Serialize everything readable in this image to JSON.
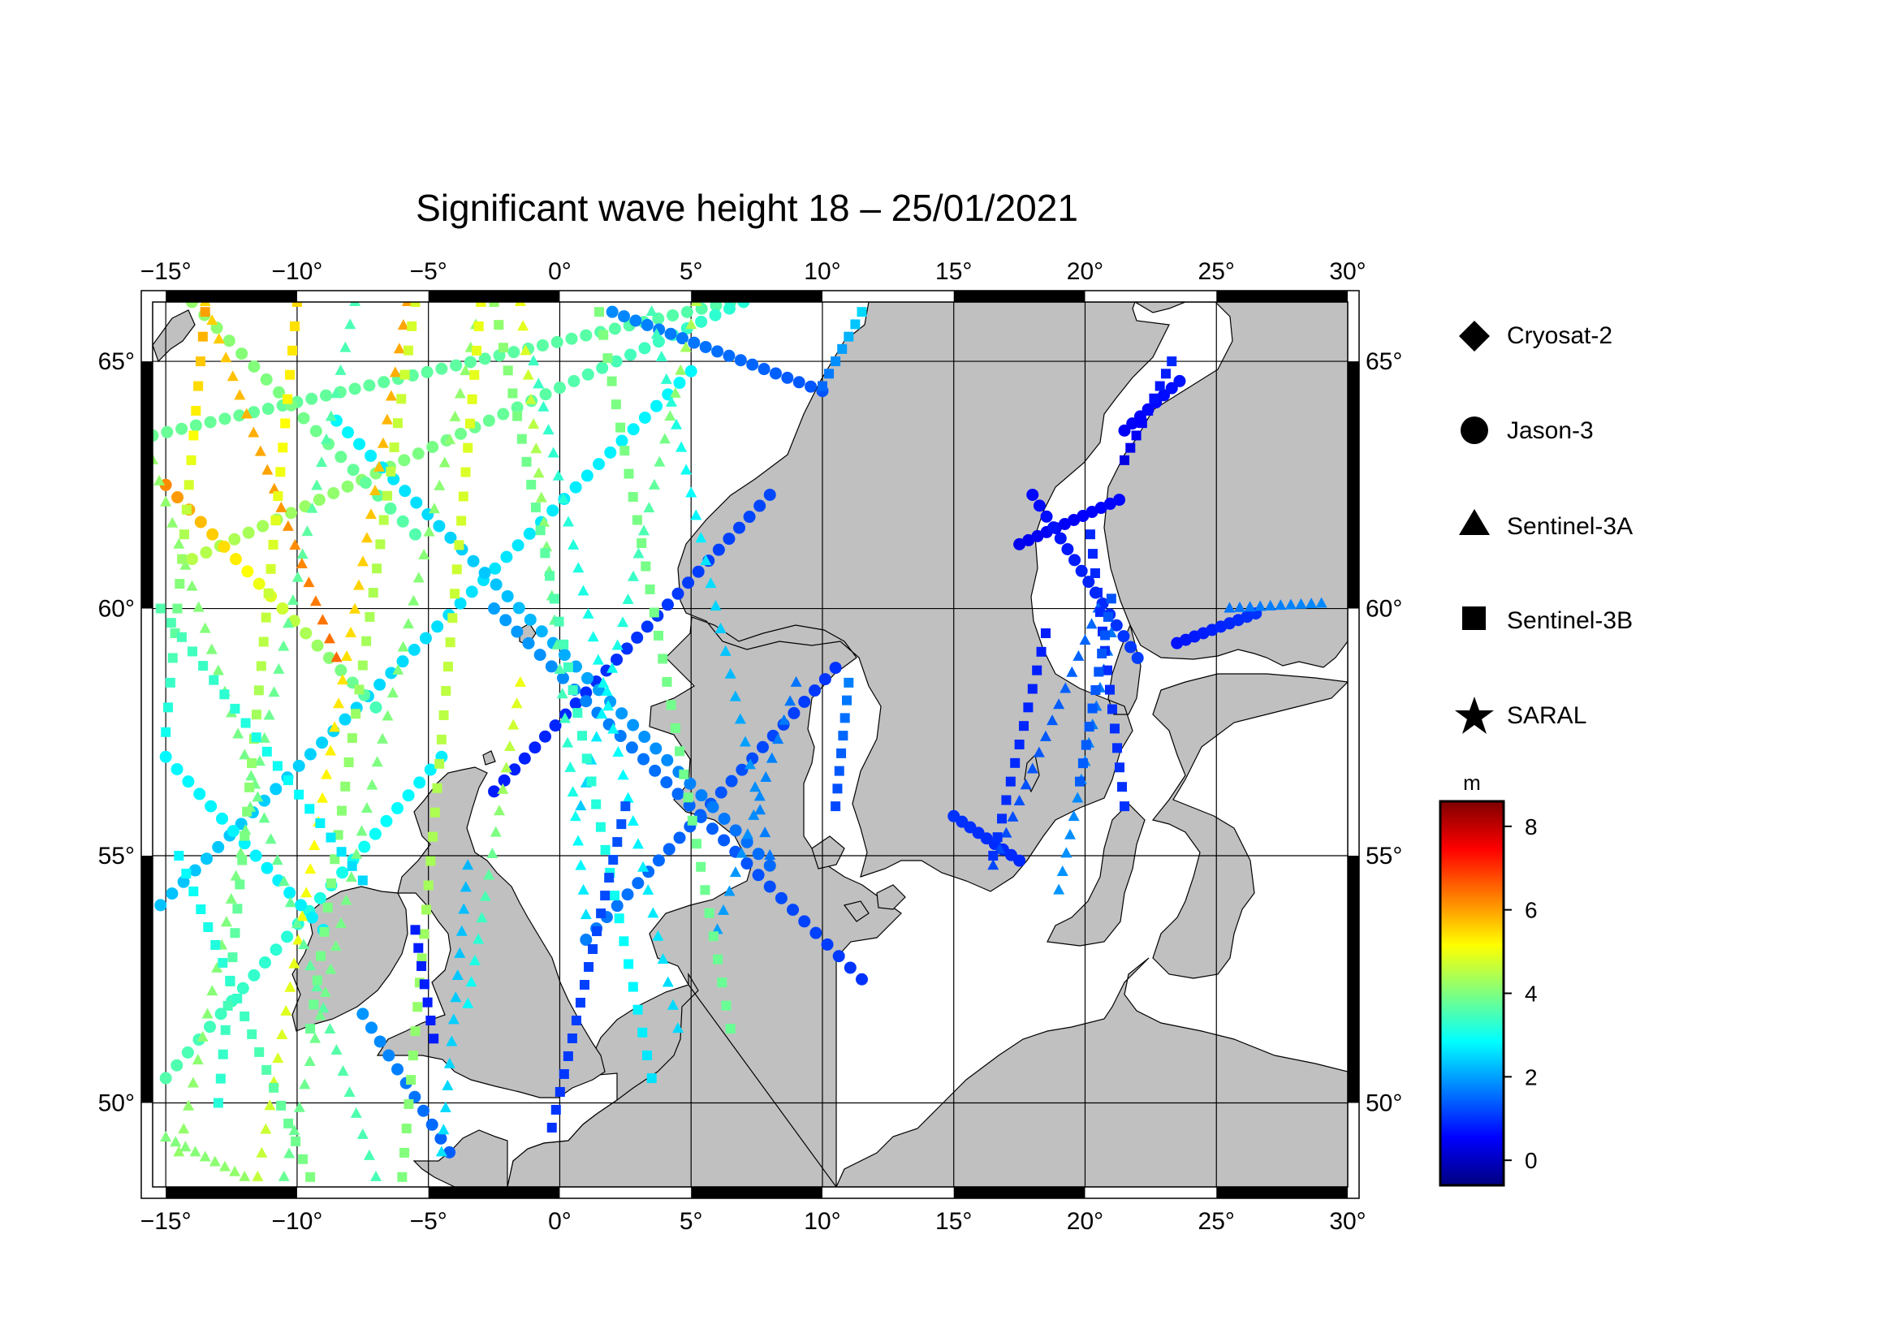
{
  "title": "Significant wave height 18 – 25/01/2021",
  "map": {
    "lon_range": [
      -15.5,
      30
    ],
    "lat_range": [
      48.3,
      66.2
    ],
    "lon_ticks": [
      -15,
      -10,
      -5,
      0,
      5,
      10,
      15,
      20,
      25,
      30
    ],
    "lon_tick_labels": [
      "−15°",
      "−10°",
      "−5°",
      "0°",
      "5°",
      "10°",
      "15°",
      "20°",
      "25°",
      "30°"
    ],
    "lat_ticks": [
      50,
      55,
      60,
      65
    ],
    "lat_tick_labels": [
      "50°",
      "55°",
      "60°",
      "65°"
    ],
    "gridlines": true,
    "land_color": "#c0c0c0",
    "sea_color": "#ffffff",
    "frame_pattern": "alternating black/white every 5 degrees"
  },
  "legend": {
    "placement": "right",
    "items": [
      {
        "label": "Cryosat-2",
        "symbol": "diamond"
      },
      {
        "label": "Jason-3",
        "symbol": "circle"
      },
      {
        "label": "Sentinel-3A",
        "symbol": "triangle"
      },
      {
        "label": "Sentinel-3B",
        "symbol": "square"
      },
      {
        "label": "SARAL",
        "symbol": "star"
      }
    ]
  },
  "colorbar": {
    "unit": "m",
    "range": [
      -0.6,
      8.6
    ],
    "tick_values": [
      0,
      2,
      4,
      6,
      8
    ],
    "tick_labels": [
      "0",
      "2",
      "4",
      "6",
      "8"
    ],
    "colors": [
      "#00007f",
      "#0000ff",
      "#007fff",
      "#00ffff",
      "#7fff7f",
      "#ffff00",
      "#ff7f00",
      "#ff0000",
      "#7f0000"
    ]
  },
  "chart_data": {
    "type": "scatter",
    "title": "Significant wave height 18 – 25/01/2021",
    "xlabel": "",
    "ylabel": "",
    "xlim": [
      -15.5,
      30
    ],
    "ylim": [
      48.3,
      66.2
    ],
    "color_scale": {
      "unit": "m",
      "min": -0.6,
      "max": 8.6
    },
    "series": [
      {
        "name": "Jason-3",
        "symbol": "circle",
        "tracks": [
          {
            "start": [
              -15.5,
              63.5
            ],
            "end": [
              6.5,
              66.2
            ],
            "h0": 3.8,
            "h1": 3.6,
            "step": 0.55
          },
          {
            "start": [
              -14.0,
              61.0
            ],
            "end": [
              7.0,
              66.2
            ],
            "h0": 4.5,
            "h1": 3.2,
            "step": 0.55
          },
          {
            "start": [
              -15.2,
              54.0
            ],
            "end": [
              5.0,
              64.8
            ],
            "h0": 2.3,
            "h1": 2.8,
            "step": 0.5
          },
          {
            "start": [
              -15.0,
              50.5
            ],
            "end": [
              -4.5,
              57.0
            ],
            "h0": 3.6,
            "h1": 2.7,
            "step": 0.5
          },
          {
            "start": [
              -2.5,
              56.3
            ],
            "end": [
              8.0,
              62.3
            ],
            "h0": 0.8,
            "h1": 1.2,
            "step": 0.45
          },
          {
            "start": [
              1.0,
              53.3
            ],
            "end": [
              10.5,
              58.8
            ],
            "h0": 1.7,
            "h1": 1.0,
            "step": 0.45
          },
          {
            "start": [
              -8.5,
              63.8
            ],
            "end": [
              8.0,
              54.8
            ],
            "h0": 2.8,
            "h1": 1.5,
            "step": 0.5
          },
          {
            "start": [
              -5.5,
              61.5
            ],
            "end": [
              -14.0,
              66.2
            ],
            "h0": 3.6,
            "h1": 4.2,
            "step": 0.55
          },
          {
            "start": [
              -2.5,
              60.0
            ],
            "end": [
              11.5,
              52.5
            ],
            "h0": 2.0,
            "h1": 1.0,
            "step": 0.5
          },
          {
            "start": [
              -15.0,
              57.0
            ],
            "end": [
              -9.0,
              53.5
            ],
            "h0": 2.8,
            "h1": 2.7,
            "step": 0.5
          },
          {
            "start": [
              -7.5,
              51.8
            ],
            "end": [
              -4.2,
              49.0
            ],
            "h0": 1.9,
            "h1": 1.4,
            "step": 0.45
          },
          {
            "start": [
              -15.0,
              62.5
            ],
            "end": [
              -7.0,
              58.0
            ],
            "h0": 6.2,
            "h1": 3.5,
            "step": 0.5
          },
          {
            "start": [
              17.5,
              61.3
            ],
            "end": [
              21.3,
              62.2
            ],
            "h0": 0.4,
            "h1": 0.6,
            "step": 0.35
          },
          {
            "start": [
              18.0,
              62.3
            ],
            "end": [
              22.0,
              59.0
            ],
            "h0": 0.6,
            "h1": 1.1,
            "step": 0.35
          },
          {
            "start": [
              23.5,
              59.3
            ],
            "end": [
              26.5,
              59.9
            ],
            "h0": 0.7,
            "h1": 1.0,
            "step": 0.35
          },
          {
            "start": [
              15.0,
              55.8
            ],
            "end": [
              17.5,
              54.9
            ],
            "h0": 1.0,
            "h1": 0.9,
            "step": 0.35
          },
          {
            "start": [
              21.5,
              63.6
            ],
            "end": [
              23.6,
              64.6
            ],
            "h0": 0.5,
            "h1": 0.7,
            "step": 0.35
          },
          {
            "start": [
              2.0,
              66.0
            ],
            "end": [
              10.0,
              64.4
            ],
            "h0": 1.8,
            "h1": 1.3,
            "step": 0.45
          }
        ]
      },
      {
        "name": "Sentinel-3A",
        "symbol": "triangle",
        "tracks": [
          {
            "start": [
              -14.5,
              49.0
            ],
            "end": [
              -7.8,
              66.2
            ],
            "h0": 4.2,
            "h1": 3.5,
            "step": 0.5
          },
          {
            "start": [
              -11.5,
              48.5
            ],
            "end": [
              -5.8,
              66.2
            ],
            "h0": 4.6,
            "h1": 6.0,
            "step": 0.5
          },
          {
            "start": [
              -7.0,
              48.5
            ],
            "end": [
              -15.5,
              63.0
            ],
            "h0": 3.5,
            "h1": 4.2,
            "step": 0.5
          },
          {
            "start": [
              -13.5,
              66.2
            ],
            "end": [
              -8.5,
              59.0
            ],
            "h0": 5.5,
            "h1": 6.5,
            "step": 0.45
          },
          {
            "start": [
              -3.0,
              66.2
            ],
            "end": [
              -10.5,
              48.5
            ],
            "h0": 4.2,
            "h1": 3.8,
            "step": 0.5
          },
          {
            "start": [
              -3.5,
              52.0
            ],
            "end": [
              -1.5,
              58.5
            ],
            "h0": 2.8,
            "h1": 5.0,
            "step": 0.45
          },
          {
            "start": [
              0.8,
              56.0
            ],
            "end": [
              5.2,
              66.2
            ],
            "h0": 2.4,
            "h1": 4.5,
            "step": 0.5
          },
          {
            "start": [
              1.0,
              53.8
            ],
            "end": [
              -1.5,
              66.2
            ],
            "h0": 2.6,
            "h1": 5.0,
            "step": 0.5
          },
          {
            "start": [
              4.5,
              51.5
            ],
            "end": [
              -1.0,
              65.0
            ],
            "h0": 2.5,
            "h1": 3.4,
            "step": 0.5
          },
          {
            "start": [
              3.5,
              66.0
            ],
            "end": [
              8.0,
              55.0
            ],
            "h0": 3.5,
            "h1": 1.6,
            "step": 0.5
          },
          {
            "start": [
              6.0,
              53.5
            ],
            "end": [
              9.0,
              58.5
            ],
            "h0": 2.0,
            "h1": 1.6,
            "step": 0.45
          },
          {
            "start": [
              16.5,
              54.8
            ],
            "end": [
              20.5,
              60.0
            ],
            "h0": 1.2,
            "h1": 1.5,
            "step": 0.4
          },
          {
            "start": [
              19.0,
              54.3
            ],
            "end": [
              21.0,
              59.5
            ],
            "h0": 1.9,
            "h1": 1.6,
            "step": 0.4
          },
          {
            "start": [
              25.5,
              60.0
            ],
            "end": [
              29.0,
              60.1
            ],
            "h0": 1.6,
            "h1": 1.8,
            "step": 0.4
          },
          {
            "start": [
              -4.5,
              49.0
            ],
            "end": [
              -3.5,
              54.8
            ],
            "h0": 2.6,
            "h1": 2.2,
            "step": 0.45
          },
          {
            "start": [
              -15.0,
              49.3
            ],
            "end": [
              -12.0,
              48.5
            ],
            "h0": 4.0,
            "h1": 4.2,
            "step": 0.4
          }
        ]
      },
      {
        "name": "Sentinel-3B",
        "symbol": "square",
        "tracks": [
          {
            "start": [
              -15.0,
              57.5
            ],
            "end": [
              -13.5,
              66.0
            ],
            "h0": 3.0,
            "h1": 6.0,
            "step": 0.5
          },
          {
            "start": [
              -13.0,
              50.0
            ],
            "end": [
              -10.0,
              66.2
            ],
            "h0": 3.2,
            "h1": 5.5,
            "step": 0.5
          },
          {
            "start": [
              -9.5,
              51.5
            ],
            "end": [
              -5.5,
              66.2
            ],
            "h0": 3.8,
            "h1": 4.8,
            "step": 0.5
          },
          {
            "start": [
              -14.5,
              55.0
            ],
            "end": [
              -9.5,
              48.5
            ],
            "h0": 2.8,
            "h1": 4.0,
            "step": 0.45
          },
          {
            "start": [
              -6.0,
              48.5
            ],
            "end": [
              -3.0,
              66.2
            ],
            "h0": 4.0,
            "h1": 5.0,
            "step": 0.5
          },
          {
            "start": [
              -2.5,
              66.2
            ],
            "end": [
              3.5,
              50.5
            ],
            "h0": 4.2,
            "h1": 2.6,
            "step": 0.5
          },
          {
            "start": [
              1.5,
              66.0
            ],
            "end": [
              6.5,
              51.5
            ],
            "h0": 4.0,
            "h1": 3.8,
            "step": 0.5
          },
          {
            "start": [
              -5.5,
              53.5
            ],
            "end": [
              -4.8,
              51.3
            ],
            "h0": 0.8,
            "h1": 0.8,
            "step": 0.4
          },
          {
            "start": [
              -0.3,
              49.5
            ],
            "end": [
              2.5,
              56.0
            ],
            "h0": 1.0,
            "h1": 1.3,
            "step": 0.4
          },
          {
            "start": [
              10.0,
              64.5
            ],
            "end": [
              11.5,
              66.0
            ],
            "h0": 1.5,
            "h1": 2.5,
            "step": 0.35
          },
          {
            "start": [
              10.5,
              56.0
            ],
            "end": [
              11.0,
              58.5
            ],
            "h0": 1.2,
            "h1": 1.7,
            "step": 0.35
          },
          {
            "start": [
              21.5,
              56.0
            ],
            "end": [
              20.2,
              61.5
            ],
            "h0": 1.0,
            "h1": 0.9,
            "step": 0.4
          },
          {
            "start": [
              16.5,
              55.0
            ],
            "end": [
              18.5,
              59.5
            ],
            "h0": 1.0,
            "h1": 0.8,
            "step": 0.4
          },
          {
            "start": [
              21.5,
              63.0
            ],
            "end": [
              23.3,
              65.0
            ],
            "h0": 0.3,
            "h1": 0.9,
            "step": 0.35
          },
          {
            "start": [
              19.8,
              56.5
            ],
            "end": [
              21.0,
              60.2
            ],
            "h0": 1.4,
            "h1": 1.3,
            "step": 0.4
          },
          {
            "start": [
              -15.2,
              60.0
            ],
            "end": [
              -7.5,
              54.5
            ],
            "h0": 3.6,
            "h1": 2.5,
            "step": 0.5
          }
        ]
      }
    ]
  }
}
